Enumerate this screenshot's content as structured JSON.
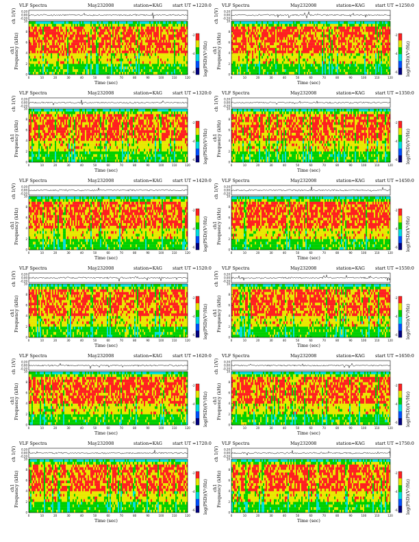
{
  "chart_data": [
    {
      "type": "heatmap",
      "panel": "spectrogram",
      "title": "VLF Spectra",
      "date": "May232008",
      "station": "station=KAG",
      "start": "start  UT  =1220:0",
      "top_ylabel": "ch 1(V)",
      "top_yticks": [
        "0.20",
        "0.00",
        "-0.20"
      ],
      "ylabel": "Frequency (kHz)",
      "ylabel_ch": "ch1",
      "yticks": [
        "0",
        "2",
        "4",
        "6",
        "8",
        "10"
      ],
      "ylim": [
        0,
        10
      ],
      "xlabel": "Time  (sec)",
      "xticks": [
        "0",
        "10",
        "20",
        "30",
        "40",
        "50",
        "60",
        "70",
        "80",
        "90",
        "100",
        "110",
        "120"
      ],
      "xlim": [
        0,
        120
      ],
      "colorbar_label": "log(PSD)(V²/Hz)",
      "colorbar_ticks": [
        "-2",
        "-4",
        "-6"
      ],
      "colorscale": [
        "#000080",
        "#0050ff",
        "#00e0e0",
        "#00d000",
        "#e8e800",
        "#ff2020"
      ]
    },
    {
      "type": "heatmap",
      "panel": "spectrogram",
      "title": "VLF Spectra",
      "date": "May232008",
      "station": "station=KAG",
      "start": "start  UT  =1250:0",
      "top_ylabel": "ch 1(V)",
      "top_yticks": [
        "0.20",
        "0.00",
        "-0.20"
      ],
      "ylabel": "Frequency (kHz)",
      "ylabel_ch": "ch1",
      "yticks": [
        "0",
        "2",
        "4",
        "6",
        "8",
        "10"
      ],
      "ylim": [
        0,
        10
      ],
      "xlabel": "Time  (sec)",
      "xticks": [
        "0",
        "10",
        "20",
        "30",
        "40",
        "50",
        "60",
        "70",
        "80",
        "90",
        "100",
        "110",
        "120"
      ],
      "xlim": [
        0,
        120
      ],
      "colorbar_label": "log(PSD)(V²/Hz)",
      "colorbar_ticks": [
        "-2",
        "-4",
        "-6"
      ],
      "colorscale": [
        "#000080",
        "#0050ff",
        "#00e0e0",
        "#00d000",
        "#e8e800",
        "#ff2020"
      ]
    },
    {
      "type": "heatmap",
      "panel": "spectrogram",
      "title": "VLF Spectra",
      "date": "May232008",
      "station": "station=KAG",
      "start": "start  UT  =1320:0",
      "top_ylabel": "ch 1(V)",
      "top_yticks": [
        "0.20",
        "0.00",
        "-0.20"
      ],
      "ylabel": "Frequency (kHz)",
      "ylabel_ch": "ch1",
      "yticks": [
        "0",
        "2",
        "4",
        "6",
        "8",
        "10"
      ],
      "ylim": [
        0,
        10
      ],
      "xlabel": "Time  (sec)",
      "xticks": [
        "0",
        "10",
        "20",
        "30",
        "40",
        "50",
        "60",
        "70",
        "80",
        "90",
        "100",
        "110",
        "120"
      ],
      "xlim": [
        0,
        120
      ],
      "colorbar_label": "log(PSD)(V²/Hz)",
      "colorbar_ticks": [
        "-2",
        "-4",
        "-6"
      ],
      "colorscale": [
        "#000080",
        "#0050ff",
        "#00e0e0",
        "#00d000",
        "#e8e800",
        "#ff2020"
      ]
    },
    {
      "type": "heatmap",
      "panel": "spectrogram",
      "title": "VLF Spectra",
      "date": "May232008",
      "station": "station=KAG",
      "start": "start  UT  =1350:0",
      "top_ylabel": "ch 1(V)",
      "top_yticks": [
        "0.20",
        "0.00",
        "-0.20"
      ],
      "ylabel": "Frequency (kHz)",
      "ylabel_ch": "ch1",
      "yticks": [
        "0",
        "2",
        "4",
        "6",
        "8",
        "10"
      ],
      "ylim": [
        0,
        10
      ],
      "xlabel": "Time  (sec)",
      "xticks": [
        "0",
        "10",
        "20",
        "30",
        "40",
        "50",
        "60",
        "70",
        "80",
        "90",
        "100",
        "110",
        "120"
      ],
      "xlim": [
        0,
        120
      ],
      "colorbar_label": "log(PSD)(V²/Hz)",
      "colorbar_ticks": [
        "-2",
        "-4",
        "-6"
      ],
      "colorscale": [
        "#000080",
        "#0050ff",
        "#00e0e0",
        "#00d000",
        "#e8e800",
        "#ff2020"
      ]
    },
    {
      "type": "heatmap",
      "panel": "spectrogram",
      "title": "VLF Spectra",
      "date": "May232008",
      "station": "station=KAG",
      "start": "start  UT  =1420:0",
      "top_ylabel": "ch 1(V)",
      "top_yticks": [
        "0.20",
        "0.00",
        "-0.20"
      ],
      "ylabel": "Frequency (kHz)",
      "ylabel_ch": "ch1",
      "yticks": [
        "0",
        "2",
        "4",
        "6",
        "8",
        "10"
      ],
      "ylim": [
        0,
        10
      ],
      "xlabel": "Time  (sec)",
      "xticks": [
        "0",
        "10",
        "20",
        "30",
        "40",
        "50",
        "60",
        "70",
        "80",
        "90",
        "100",
        "110",
        "120"
      ],
      "xlim": [
        0,
        120
      ],
      "colorbar_label": "log(PSD)(V²/Hz)",
      "colorbar_ticks": [
        "-2",
        "-4",
        "-6"
      ],
      "colorscale": [
        "#000080",
        "#0050ff",
        "#00e0e0",
        "#00d000",
        "#e8e800",
        "#ff2020"
      ]
    },
    {
      "type": "heatmap",
      "panel": "spectrogram",
      "title": "VLF Spectra",
      "date": "May232008",
      "station": "station=KAG",
      "start": "start  UT  =1450:0",
      "top_ylabel": "ch 1(V)",
      "top_yticks": [
        "0.20",
        "0.00",
        "-0.20"
      ],
      "ylabel": "Frequency (kHz)",
      "ylabel_ch": "ch1",
      "yticks": [
        "0",
        "2",
        "4",
        "6",
        "8",
        "10"
      ],
      "ylim": [
        0,
        10
      ],
      "xlabel": "Time  (sec)",
      "xticks": [
        "0",
        "10",
        "20",
        "30",
        "40",
        "50",
        "60",
        "70",
        "80",
        "90",
        "100",
        "110",
        "120"
      ],
      "xlim": [
        0,
        120
      ],
      "colorbar_label": "log(PSD)(V²/Hz)",
      "colorbar_ticks": [
        "-2",
        "-4",
        "-6"
      ],
      "colorscale": [
        "#000080",
        "#0050ff",
        "#00e0e0",
        "#00d000",
        "#e8e800",
        "#ff2020"
      ]
    },
    {
      "type": "heatmap",
      "panel": "spectrogram",
      "title": "VLF Spectra",
      "date": "May232008",
      "station": "station=KAG",
      "start": "start  UT  =1520:0",
      "top_ylabel": "ch 1(V)",
      "top_yticks": [
        "0.20",
        "0.00",
        "-0.20"
      ],
      "ylabel": "Frequency (kHz)",
      "ylabel_ch": "ch1",
      "yticks": [
        "0",
        "2",
        "4",
        "6",
        "8",
        "10"
      ],
      "ylim": [
        0,
        10
      ],
      "xlabel": "Time  (sec)",
      "xticks": [
        "0",
        "10",
        "20",
        "30",
        "40",
        "50",
        "60",
        "70",
        "80",
        "90",
        "100",
        "110",
        "120"
      ],
      "xlim": [
        0,
        120
      ],
      "colorbar_label": "log(PSD)(V²/Hz)",
      "colorbar_ticks": [
        "-2",
        "-4",
        "-6"
      ],
      "colorscale": [
        "#000080",
        "#0050ff",
        "#00e0e0",
        "#00d000",
        "#e8e800",
        "#ff2020"
      ]
    },
    {
      "type": "heatmap",
      "panel": "spectrogram",
      "title": "VLF Spectra",
      "date": "May232008",
      "station": "station=KAG",
      "start": "start  UT  =1550:0",
      "top_ylabel": "ch 1(V)",
      "top_yticks": [
        "0.20",
        "0.00",
        "-0.20"
      ],
      "ylabel": "Frequency (kHz)",
      "ylabel_ch": "ch1",
      "yticks": [
        "0",
        "2",
        "4",
        "6",
        "8",
        "10"
      ],
      "ylim": [
        0,
        10
      ],
      "xlabel": "Time  (sec)",
      "xticks": [
        "0",
        "10",
        "20",
        "30",
        "40",
        "50",
        "60",
        "70",
        "80",
        "90",
        "100",
        "110",
        "120"
      ],
      "xlim": [
        0,
        120
      ],
      "colorbar_label": "log(PSD)(V²/Hz)",
      "colorbar_ticks": [
        "-2",
        "-4",
        "-6"
      ],
      "colorscale": [
        "#000080",
        "#0050ff",
        "#00e0e0",
        "#00d000",
        "#e8e800",
        "#ff2020"
      ]
    },
    {
      "type": "heatmap",
      "panel": "spectrogram",
      "title": "VLF Spectra",
      "date": "May232008",
      "station": "station=KAG",
      "start": "start  UT  =1620:0",
      "top_ylabel": "ch 1(V)",
      "top_yticks": [
        "0.20",
        "0.00",
        "-0.20"
      ],
      "ylabel": "Frequency (kHz)",
      "ylabel_ch": "ch1",
      "yticks": [
        "0",
        "2",
        "4",
        "6",
        "8",
        "10"
      ],
      "ylim": [
        0,
        10
      ],
      "xlabel": "Time  (sec)",
      "xticks": [
        "0",
        "10",
        "20",
        "30",
        "40",
        "50",
        "60",
        "70",
        "80",
        "90",
        "100",
        "110",
        "120"
      ],
      "xlim": [
        0,
        120
      ],
      "colorbar_label": "log(PSD)(V²/Hz)",
      "colorbar_ticks": [
        "-2",
        "-4",
        "-6"
      ],
      "colorscale": [
        "#000080",
        "#0050ff",
        "#00e0e0",
        "#00d000",
        "#e8e800",
        "#ff2020"
      ]
    },
    {
      "type": "heatmap",
      "panel": "spectrogram",
      "title": "VLF Spectra",
      "date": "May232008",
      "station": "station=KAG",
      "start": "start  UT  =1650:0",
      "top_ylabel": "ch 1(V)",
      "top_yticks": [
        "0.20",
        "0.00",
        "-0.20"
      ],
      "ylabel": "Frequency (kHz)",
      "ylabel_ch": "ch1",
      "yticks": [
        "0",
        "2",
        "4",
        "6",
        "8",
        "10"
      ],
      "ylim": [
        0,
        10
      ],
      "xlabel": "Time  (sec)",
      "xticks": [
        "0",
        "10",
        "20",
        "30",
        "40",
        "50",
        "60",
        "70",
        "80",
        "90",
        "100",
        "110",
        "120"
      ],
      "xlim": [
        0,
        120
      ],
      "colorbar_label": "log(PSD)(V²/Hz)",
      "colorbar_ticks": [
        "-2",
        "-4",
        "-6"
      ],
      "colorscale": [
        "#000080",
        "#0050ff",
        "#00e0e0",
        "#00d000",
        "#e8e800",
        "#ff2020"
      ]
    },
    {
      "type": "heatmap",
      "panel": "spectrogram",
      "title": "VLF Spectra",
      "date": "May232008",
      "station": "station=KAG",
      "start": "start  UT  =1720:0",
      "top_ylabel": "ch 1(V)",
      "top_yticks": [
        "0.20",
        "0.00",
        "-0.20"
      ],
      "ylabel": "Frequency (kHz)",
      "ylabel_ch": "ch1",
      "yticks": [
        "0",
        "2",
        "4",
        "6",
        "8",
        "10"
      ],
      "ylim": [
        0,
        10
      ],
      "xlabel": "Time  (sec)",
      "xticks": [
        "0",
        "10",
        "20",
        "30",
        "40",
        "50",
        "60",
        "70",
        "80",
        "90",
        "100",
        "110",
        "120"
      ],
      "xlim": [
        0,
        120
      ],
      "colorbar_label": "log(PSD)(V²/Hz)",
      "colorbar_ticks": [
        "-2",
        "-4",
        "-6"
      ],
      "colorscale": [
        "#000080",
        "#0050ff",
        "#00e0e0",
        "#00d000",
        "#e8e800",
        "#ff2020"
      ]
    },
    {
      "type": "heatmap",
      "panel": "spectrogram",
      "title": "VLF Spectra",
      "date": "May232008",
      "station": "station=KAG",
      "start": "start  UT  =1750:0",
      "top_ylabel": "ch 1(V)",
      "top_yticks": [
        "0.20",
        "0.00",
        "-0.20"
      ],
      "ylabel": "Frequency (kHz)",
      "ylabel_ch": "ch1",
      "yticks": [
        "0",
        "2",
        "4",
        "6",
        "8",
        "10"
      ],
      "ylim": [
        0,
        10
      ],
      "xlabel": "Time  (sec)",
      "xticks": [
        "0",
        "10",
        "20",
        "30",
        "40",
        "50",
        "60",
        "70",
        "80",
        "90",
        "100",
        "110",
        "120"
      ],
      "xlim": [
        0,
        120
      ],
      "colorbar_label": "log(PSD)(V²/Hz)",
      "colorbar_ticks": [
        "-2",
        "-4",
        "-6"
      ],
      "colorscale": [
        "#000080",
        "#0050ff",
        "#00e0e0",
        "#00d000",
        "#e8e800",
        "#ff2020"
      ]
    }
  ]
}
